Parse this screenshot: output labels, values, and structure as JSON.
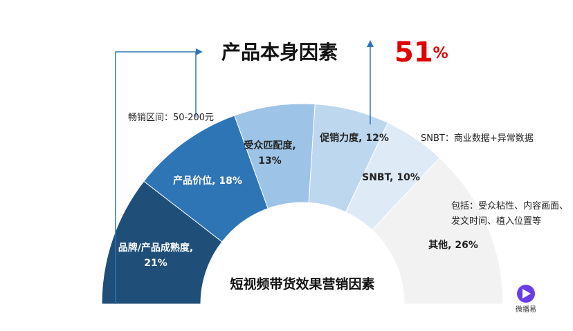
{
  "chart_data": {
    "type": "half-donut",
    "title": "产品本身因素",
    "highlight": {
      "value": 51,
      "unit": "%"
    },
    "center_text": "短视频带货效果营销因素",
    "values": [
      21,
      18,
      13,
      12,
      10,
      26
    ],
    "value_labels": [
      "品牌/产品成熟度, 21%",
      "产品价位, 18%",
      "受众匹配度, 13%",
      "促销力度, 12%",
      "SNBT, 10%",
      "其他, 26%"
    ],
    "colors": [
      "#1f4e79",
      "#2e75b6",
      "#9dc3e6",
      "#bdd7ee",
      "#deebf7",
      "#f2f2f2"
    ],
    "label_colors": [
      "#ffffff",
      "#ffffff",
      "#222222",
      "#222222",
      "#222222",
      "#222222"
    ],
    "annotations": [
      "畅销区间：50-200元",
      "SNBT：商业数据+异常数据",
      "包括：受众粘性、内容画面、发文时间、植入位置等"
    ],
    "logo": "微播易"
  }
}
